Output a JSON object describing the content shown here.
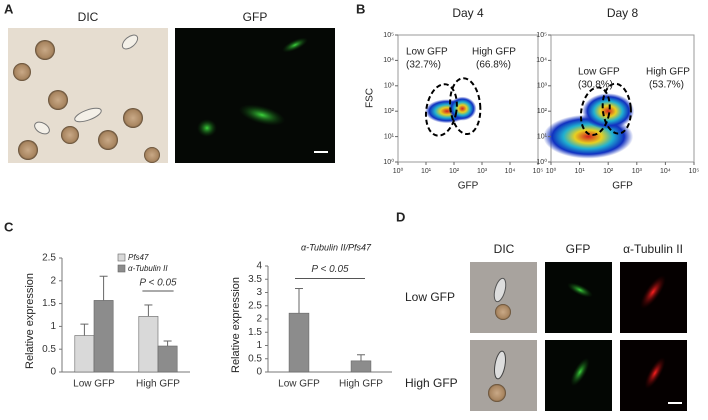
{
  "panel_labels": [
    "A",
    "B",
    "C",
    "D"
  ],
  "panel_a": {
    "labels": [
      "DIC",
      "GFP"
    ]
  },
  "panel_d": {
    "columns": [
      "DIC",
      "GFP",
      "α-Tubulin II"
    ],
    "rows": [
      "Low GFP",
      "High GFP"
    ]
  },
  "chart_data": [
    {
      "type": "density",
      "title": "Day 4",
      "xlabel": "GFP",
      "ylabel": "FSC",
      "log_scale": true,
      "xlim": [
        1,
        100000
      ],
      "ylim": [
        1,
        100000
      ],
      "xticks": [
        {
          "value": 1,
          "label": "10⁰"
        },
        {
          "value": 10,
          "label": "10¹"
        },
        {
          "value": 100,
          "label": "10²"
        },
        {
          "value": 1000,
          "label": "10³"
        },
        {
          "value": 10000,
          "label": "10⁴"
        },
        {
          "value": 100000,
          "label": "10⁵"
        }
      ],
      "yticks": [
        {
          "value": 1,
          "label": "10⁰"
        },
        {
          "value": 10,
          "label": "10¹"
        },
        {
          "value": 100,
          "label": "10²"
        },
        {
          "value": 1000,
          "label": "10³"
        },
        {
          "value": 10000,
          "label": "10⁴"
        },
        {
          "value": 100000,
          "label": "10⁵"
        }
      ],
      "annotations": [
        "Low GFP",
        "(32.7%)",
        "High GFP",
        "(66.8%)"
      ]
    },
    {
      "type": "density",
      "title": "Day 8",
      "xlabel": "GFP",
      "log_scale": true,
      "xlim": [
        1,
        100000
      ],
      "ylim": [
        1,
        100000
      ],
      "xticks": [
        {
          "value": 1,
          "label": "10⁰"
        },
        {
          "value": 10,
          "label": "10¹"
        },
        {
          "value": 100,
          "label": "10²"
        },
        {
          "value": 1000,
          "label": "10³"
        },
        {
          "value": 10000,
          "label": "10⁴"
        },
        {
          "value": 100000,
          "label": "10⁵"
        }
      ],
      "yticks": [
        {
          "value": 1,
          "label": "10⁰"
        },
        {
          "value": 10,
          "label": "10¹"
        },
        {
          "value": 100,
          "label": "10²"
        },
        {
          "value": 1000,
          "label": "10³"
        },
        {
          "value": 10000,
          "label": "10⁴"
        },
        {
          "value": 100000,
          "label": "10⁵"
        }
      ],
      "annotations": [
        "Low GFP",
        "(30.8%)",
        "High GFP",
        "(53.7%)"
      ]
    },
    {
      "type": "bar",
      "ylabel": "Relative expression",
      "categories": [
        "Low GFP",
        "High GFP"
      ],
      "series": [
        {
          "name": "Pfs47",
          "color": "#d9d9d9",
          "values": [
            0.8,
            1.22
          ],
          "errors": [
            0.25,
            0.25
          ]
        },
        {
          "name": "α-Tubulin II",
          "color": "#8c8c8c",
          "values": [
            1.57,
            0.57
          ],
          "errors": [
            0.53,
            0.11
          ]
        }
      ],
      "ylim": [
        0,
        2.5
      ],
      "yticks": [
        0,
        0.5,
        1,
        1.5,
        2,
        2.5
      ],
      "annotations": [
        "P < 0.05"
      ]
    },
    {
      "type": "bar",
      "title": "α-Tubulin II/Pfs47",
      "ylabel": "Relative expression",
      "categories": [
        "Low GFP",
        "High GFP"
      ],
      "series": [
        {
          "name": "α-Tubulin II/Pfs47",
          "color": "#8c8c8c",
          "values": [
            2.22,
            0.42
          ],
          "errors": [
            0.93,
            0.23
          ]
        }
      ],
      "ylim": [
        0,
        4
      ],
      "yticks": [
        0,
        0.5,
        1,
        1.5,
        2,
        2.5,
        3,
        3.5,
        4
      ],
      "annotations": [
        "P < 0.05"
      ]
    }
  ]
}
